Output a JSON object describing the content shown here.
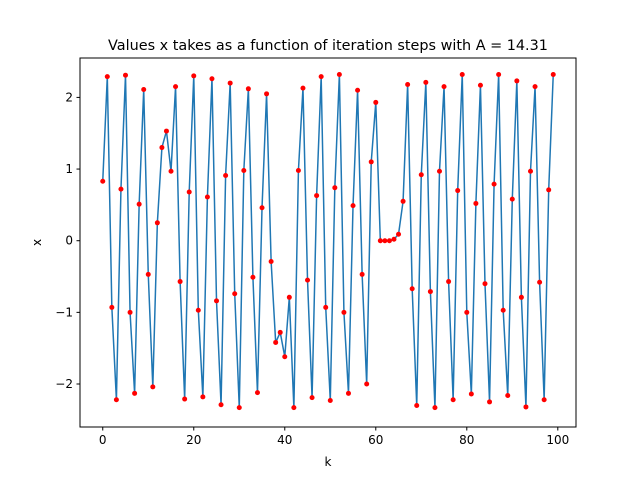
{
  "chart_data": {
    "type": "line",
    "title": "Values x takes as a function of iteration steps with A = 14.31",
    "xlabel": "k",
    "ylabel": "x",
    "xlim": [
      -5,
      104
    ],
    "ylim": [
      -2.6,
      2.55
    ],
    "xticks": [
      0,
      20,
      40,
      60,
      80,
      100
    ],
    "yticks": [
      -2,
      -1,
      0,
      1,
      2
    ],
    "xtick_labels": [
      "0",
      "20",
      "40",
      "60",
      "80",
      "100"
    ],
    "ytick_labels": [
      "−2",
      "−1",
      "0",
      "1",
      "2"
    ],
    "grid": false,
    "line_color": "#1f77b4",
    "marker_color": "#ff0000",
    "x": [
      0,
      1,
      2,
      3,
      4,
      5,
      6,
      7,
      8,
      9,
      10,
      11,
      12,
      13,
      14,
      15,
      16,
      17,
      18,
      19,
      20,
      21,
      22,
      23,
      24,
      25,
      26,
      27,
      28,
      29,
      30,
      31,
      32,
      33,
      34,
      35,
      36,
      37,
      38,
      39,
      40,
      41,
      42,
      43,
      44,
      45,
      46,
      47,
      48,
      49,
      50,
      51,
      52,
      53,
      54,
      55,
      56,
      57,
      58,
      59,
      60,
      61,
      62,
      63,
      64,
      65,
      66,
      67,
      68,
      69,
      70,
      71,
      72,
      73,
      74,
      75,
      76,
      77,
      78,
      79,
      80,
      81,
      82,
      83,
      84,
      85,
      86,
      87,
      88,
      89,
      90,
      91,
      92,
      93,
      94,
      95,
      96,
      97,
      98,
      99
    ],
    "y": [
      0.83,
      2.29,
      -0.93,
      -2.22,
      0.72,
      2.31,
      -1.0,
      -2.13,
      0.51,
      2.11,
      -0.47,
      -2.04,
      0.25,
      1.3,
      1.53,
      0.97,
      2.15,
      -0.57,
      -2.21,
      0.68,
      2.3,
      -0.97,
      -2.18,
      0.61,
      2.26,
      -0.84,
      -2.29,
      0.91,
      2.2,
      -0.74,
      -2.33,
      0.98,
      2.12,
      -0.51,
      -2.12,
      0.46,
      2.05,
      -0.29,
      -1.42,
      -1.28,
      -1.62,
      -0.79,
      -2.33,
      0.98,
      2.13,
      -0.55,
      -2.19,
      0.63,
      2.29,
      -0.93,
      -2.23,
      0.74,
      2.32,
      -1.0,
      -2.13,
      0.49,
      2.1,
      -0.47,
      -2.0,
      1.1,
      1.93,
      0.0,
      0.0,
      0.0,
      0.02,
      0.09,
      0.55,
      2.18,
      -0.67,
      -2.3,
      0.92,
      2.21,
      -0.71,
      -2.33,
      0.97,
      2.15,
      -0.57,
      -2.22,
      0.7,
      2.32,
      -1.0,
      -2.14,
      0.52,
      2.17,
      -0.6,
      -2.25,
      0.79,
      2.32,
      -0.97,
      -2.16,
      0.58,
      2.23,
      -0.79,
      -2.32,
      0.97,
      2.15,
      -0.58,
      -2.22,
      0.71,
      2.32
    ]
  }
}
